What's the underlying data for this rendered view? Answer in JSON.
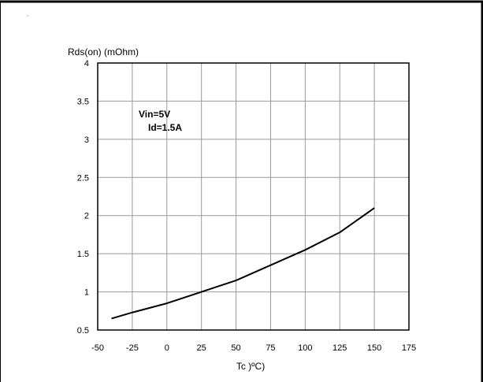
{
  "chart_data": {
    "type": "line",
    "title": "",
    "xlabel": "Tc )ºC)",
    "ylabel": "Rds(on) (mOhm)",
    "xlim": [
      -50,
      175
    ],
    "ylim": [
      0.5,
      4
    ],
    "xticks": [
      -50,
      -25,
      0,
      25,
      50,
      75,
      100,
      125,
      150,
      175
    ],
    "yticks": [
      0.5,
      1,
      1.5,
      2,
      2.5,
      3,
      3.5,
      4
    ],
    "ytick_labels": [
      "0.5",
      "1",
      "1.5",
      "2",
      "2.5",
      "3",
      "3.5",
      "4"
    ],
    "grid": true,
    "annotations": [
      "Vin=5V",
      "Id=1.5A"
    ],
    "series": [
      {
        "x": [
          -40,
          -25,
          0,
          25,
          50,
          75,
          100,
          125,
          150
        ],
        "y": [
          0.65,
          0.73,
          0.85,
          1.0,
          1.15,
          1.35,
          1.55,
          1.78,
          2.1
        ]
      }
    ],
    "corner_mark": "ˇ"
  }
}
